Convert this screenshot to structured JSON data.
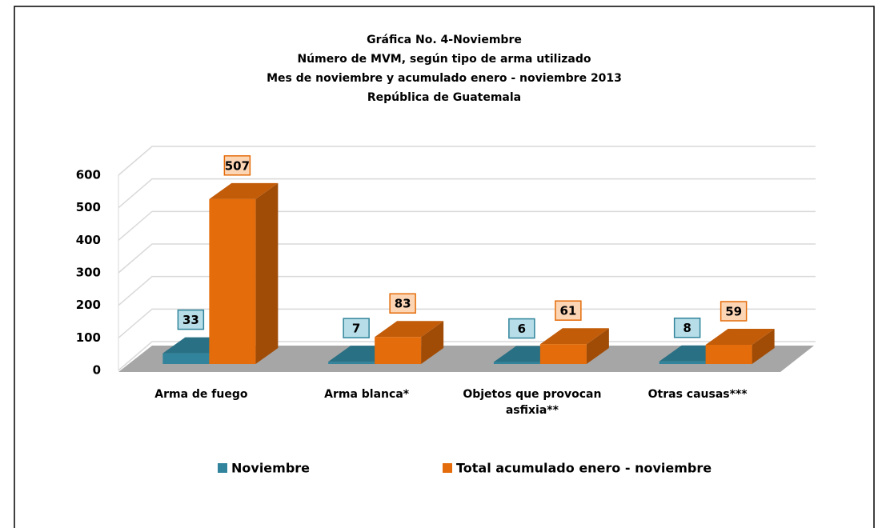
{
  "chart_data": {
    "type": "bar3d",
    "title": [
      "Gráfica No. 4-Noviembre",
      "Número de MVM, según tipo de arma utilizado",
      "Mes de noviembre y acumulado enero - noviembre 2013",
      "República de Guatemala"
    ],
    "categories": [
      "Arma de fuego",
      "Arma blanca*",
      "Objetos que provocan asfixia**",
      "Otras causas***"
    ],
    "series": [
      {
        "name": "Noviembre",
        "color": "#31849b",
        "values": [
          33,
          7,
          6,
          8
        ]
      },
      {
        "name": "Total acumulado enero - noviembre",
        "color": "#e46c0a",
        "values": [
          507,
          83,
          61,
          59
        ]
      }
    ],
    "ylim": [
      0,
      600
    ],
    "yticks": [
      0,
      100,
      200,
      300,
      400,
      500,
      600
    ],
    "grid": true,
    "legend": "bottom"
  }
}
